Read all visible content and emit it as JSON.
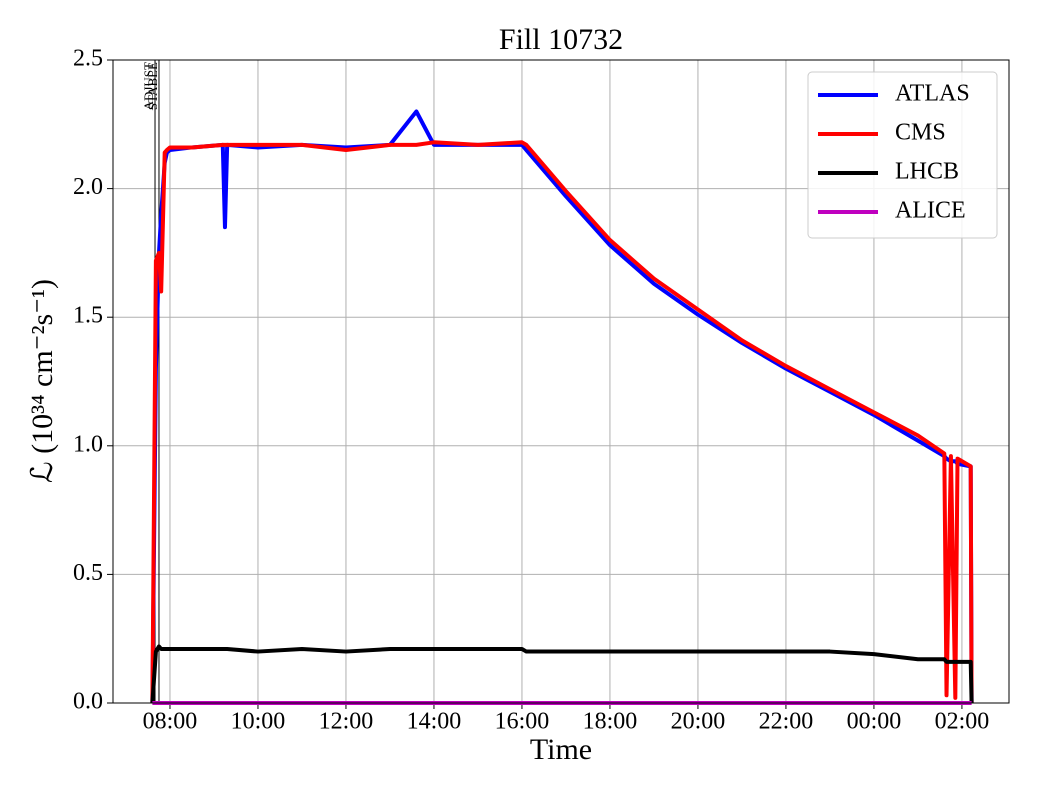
{
  "chart_data": {
    "type": "line",
    "title": "Fill 10732",
    "xlabel": "Time",
    "ylabel": "ℒ (10³⁴ cm⁻²s⁻¹)",
    "x": [
      7.6,
      7.68,
      7.75,
      7.8,
      7.88,
      7.93,
      8.0,
      8.5,
      9.2,
      9.25,
      9.3,
      10.0,
      11.0,
      12.0,
      13.0,
      13.6,
      14.0,
      15.0,
      16.0,
      16.1,
      17.0,
      18.0,
      19.0,
      20.0,
      21.0,
      22.0,
      23.0,
      24.0,
      25.0,
      25.6,
      25.65,
      25.75,
      25.85,
      25.9,
      26.2,
      26.22
    ],
    "series": [
      {
        "name": "ATLAS",
        "color": "#0000ff",
        "values": [
          0,
          1.3,
          1.75,
          1.9,
          2.1,
          2.14,
          2.15,
          2.16,
          2.17,
          1.85,
          2.17,
          2.16,
          2.17,
          2.16,
          2.17,
          2.3,
          2.17,
          2.17,
          2.17,
          2.15,
          1.97,
          1.78,
          1.63,
          1.51,
          1.4,
          1.3,
          1.21,
          1.12,
          1.02,
          0.96,
          0.95,
          0.94,
          0.94,
          0.93,
          0.92,
          0
        ]
      },
      {
        "name": "CMS",
        "color": "#ff0000",
        "values": [
          0,
          1.72,
          1.75,
          1.6,
          2.14,
          2.15,
          2.16,
          2.16,
          2.17,
          2.17,
          2.17,
          2.17,
          2.17,
          2.15,
          2.17,
          2.17,
          2.18,
          2.17,
          2.18,
          2.17,
          1.99,
          1.8,
          1.65,
          1.53,
          1.41,
          1.31,
          1.22,
          1.13,
          1.04,
          0.97,
          0.03,
          0.96,
          0.02,
          0.95,
          0.92,
          0
        ]
      },
      {
        "name": "LHCB",
        "color": "#000000",
        "values": [
          0,
          0.2,
          0.22,
          0.21,
          0.21,
          0.21,
          0.21,
          0.21,
          0.21,
          0.21,
          0.21,
          0.2,
          0.21,
          0.2,
          0.21,
          0.21,
          0.21,
          0.21,
          0.21,
          0.2,
          0.2,
          0.2,
          0.2,
          0.2,
          0.2,
          0.2,
          0.2,
          0.19,
          0.17,
          0.17,
          0.16,
          0.16,
          0.16,
          0.16,
          0.16,
          0
        ]
      },
      {
        "name": "ALICE",
        "color": "#bf00bf",
        "values": [
          0,
          0,
          0,
          0,
          0,
          0,
          0,
          0,
          0,
          0,
          0,
          0,
          0,
          0,
          0,
          0,
          0,
          0,
          0,
          0,
          0,
          0,
          0,
          0,
          0,
          0,
          0,
          0,
          0,
          0,
          0,
          0,
          0,
          0,
          0,
          0
        ]
      }
    ],
    "xlim": [
      6.705,
      27.07
    ],
    "xticks": [
      {
        "value": 8,
        "label": "08:00"
      },
      {
        "value": 10,
        "label": "10:00"
      },
      {
        "value": 12,
        "label": "12:00"
      },
      {
        "value": 14,
        "label": "14:00"
      },
      {
        "value": 16,
        "label": "16:00"
      },
      {
        "value": 18,
        "label": "18:00"
      },
      {
        "value": 20,
        "label": "20:00"
      },
      {
        "value": 22,
        "label": "22:00"
      },
      {
        "value": 24,
        "label": "00:00"
      },
      {
        "value": 26,
        "label": "02:00"
      }
    ],
    "ylim": [
      0,
      2.5
    ],
    "yticks": [
      {
        "value": 0,
        "label": "0.0"
      },
      {
        "value": 0.5,
        "label": "0.5"
      },
      {
        "value": 1,
        "label": "1.0"
      },
      {
        "value": 1.5,
        "label": "1.5"
      },
      {
        "value": 2,
        "label": "2.0"
      },
      {
        "value": 2.5,
        "label": "2.5"
      }
    ],
    "annotations": [
      {
        "x": 7.66,
        "label": "ADJUST"
      },
      {
        "x": 7.75,
        "label": "STABLE"
      }
    ],
    "grid": true,
    "legend": "upper right"
  }
}
